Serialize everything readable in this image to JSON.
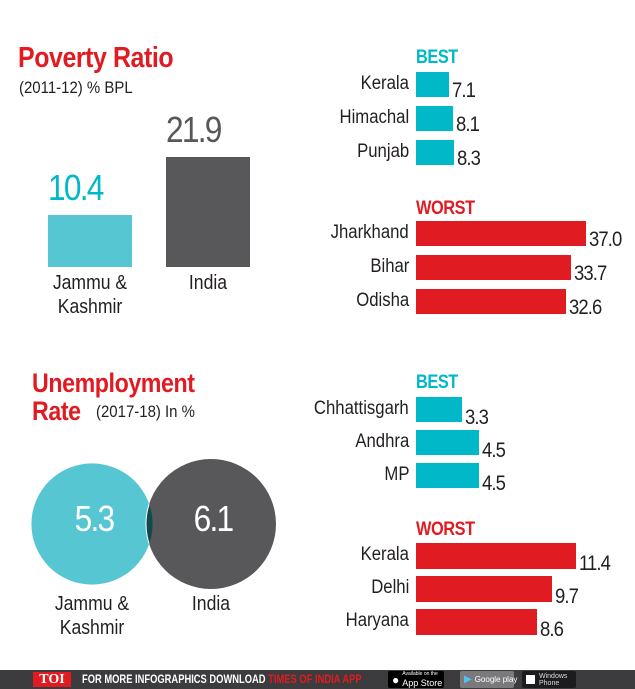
{
  "colors": {
    "red": "#e11b22",
    "teal": "#00b8c8",
    "teal_light": "#56c6d2",
    "dark_gray": "#58585a",
    "overlap": "#0f4a52",
    "text": "#231f20",
    "footer_bg": "#3c3b3d"
  },
  "chart_data": [
    {
      "type": "bar",
      "title": "Poverty Ratio",
      "subtitle": "(2011-12) % BPL",
      "categories": [
        "Jammu & Kashmir",
        "India"
      ],
      "values": [
        10.4,
        21.9
      ],
      "value_labels": [
        "10.4",
        "21.9"
      ],
      "category_lines": [
        [
          "Jammu &",
          "Kashmir"
        ],
        [
          "India"
        ]
      ],
      "colors": [
        "#56c6d2",
        "#58585a"
      ],
      "label_colors": [
        "#00b8c8",
        "#58585a"
      ],
      "xlabel": "",
      "ylabel": ""
    },
    {
      "type": "bar",
      "orientation": "horizontal",
      "title": "Poverty Ratio - BEST",
      "group_label": "BEST",
      "categories": [
        "Kerala",
        "Himachal",
        "Punjab"
      ],
      "values": [
        7.1,
        8.1,
        8.3
      ],
      "value_labels": [
        "7.1",
        "8.1",
        "8.3"
      ],
      "color": "#00b8c8",
      "scale_max": 37.0
    },
    {
      "type": "bar",
      "orientation": "horizontal",
      "title": "Poverty Ratio - WORST",
      "group_label": "WORST",
      "categories": [
        "Jharkhand",
        "Bihar",
        "Odisha"
      ],
      "values": [
        37.0,
        33.7,
        32.6
      ],
      "value_labels": [
        "37.0",
        "33.7",
        "32.6"
      ],
      "color": "#e11b22",
      "scale_max": 37.0
    },
    {
      "type": "scatter",
      "style": "bubble",
      "title": "Unemployment Rate",
      "subtitle": "(2017-18) In %",
      "categories": [
        "Jammu & Kashmir",
        "India"
      ],
      "values": [
        5.3,
        6.1
      ],
      "value_labels": [
        "5.3",
        "6.1"
      ],
      "category_lines": [
        [
          "Jammu &",
          "Kashmir"
        ],
        [
          "India"
        ]
      ],
      "colors": [
        "#56c6d2",
        "#58585a"
      ]
    },
    {
      "type": "bar",
      "orientation": "horizontal",
      "title": "Unemployment Rate - BEST",
      "group_label": "BEST",
      "categories": [
        "Chhattisgarh",
        "Andhra",
        "MP"
      ],
      "values": [
        3.3,
        4.5,
        4.5
      ],
      "value_labels": [
        "3.3",
        "4.5",
        "4.5"
      ],
      "color": "#00b8c8",
      "scale_max": 11.4
    },
    {
      "type": "bar",
      "orientation": "horizontal",
      "title": "Unemployment Rate - WORST",
      "group_label": "WORST",
      "categories": [
        "Kerala",
        "Delhi",
        "Haryana"
      ],
      "values": [
        11.4,
        9.7,
        8.6
      ],
      "value_labels": [
        "11.4",
        "9.7",
        "8.6"
      ],
      "color": "#e11b22",
      "scale_max": 11.4
    }
  ],
  "poverty": {
    "title": "Poverty Ratio",
    "subtitle": "(2011-12) % BPL"
  },
  "unemployment": {
    "title_line1": "Unemployment",
    "title_line2": "Rate",
    "subtitle": "(2017-18) In %"
  },
  "footer": {
    "logo": "TOI",
    "text": "FOR MORE  INFOGRAPHICS DOWNLOAD",
    "app_name": "TIMES OF INDIA  APP",
    "app_store_small": "Available on the",
    "app_store": "App Store",
    "google_play": "Google play",
    "windows_line1": "Windows",
    "windows_line2": "Phone"
  }
}
